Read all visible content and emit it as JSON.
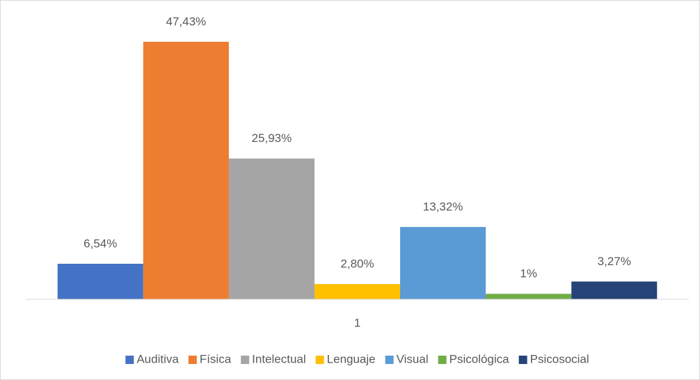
{
  "chart_data": {
    "type": "bar",
    "categories": [
      "1"
    ],
    "ylim": [
      0,
      50
    ],
    "series": [
      {
        "name": "Auditiva",
        "color": "#4472c4",
        "values": [
          6.54
        ],
        "value_labels": [
          "6,54%"
        ]
      },
      {
        "name": "Física",
        "color": "#ed7d31",
        "values": [
          47.43
        ],
        "value_labels": [
          "47,43%"
        ]
      },
      {
        "name": "Intelectual",
        "color": "#a5a5a5",
        "values": [
          25.93
        ],
        "value_labels": [
          "25,93%"
        ]
      },
      {
        "name": "Lenguaje",
        "color": "#ffc000",
        "values": [
          2.8
        ],
        "value_labels": [
          "2,80%"
        ]
      },
      {
        "name": "Visual",
        "color": "#5b9bd5",
        "values": [
          13.32
        ],
        "value_labels": [
          "13,32%"
        ]
      },
      {
        "name": "Psicológica",
        "color": "#70ad47",
        "values": [
          1
        ],
        "value_labels": [
          "1%"
        ]
      },
      {
        "name": "Psicosocial",
        "color": "#264478",
        "values": [
          3.27
        ],
        "value_labels": [
          "3,27%"
        ]
      }
    ]
  }
}
